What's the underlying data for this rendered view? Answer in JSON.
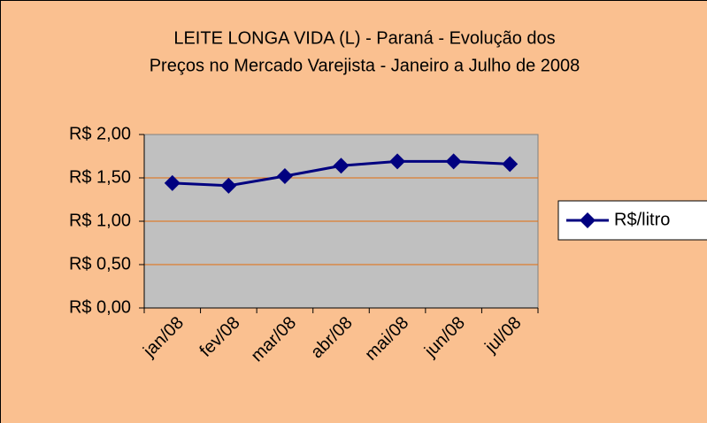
{
  "chart_data": {
    "type": "line",
    "title": [
      "LEITE LONGA VIDA (L) - Paraná - Evolução dos",
      "Preços no Mercado Varejista - Janeiro a Julho de 2008"
    ],
    "categories": [
      "jan/08",
      "fev/08",
      "mar/08",
      "abr/08",
      "mai/08",
      "jun/08",
      "jul/08"
    ],
    "series": [
      {
        "name": "R$/litro",
        "color": "#000080",
        "values": [
          1.44,
          1.41,
          1.52,
          1.64,
          1.69,
          1.69,
          1.66
        ]
      }
    ],
    "ylim": [
      0,
      2
    ],
    "yticks": [
      {
        "value": 0,
        "label": "R$ 0,00"
      },
      {
        "value": 0.5,
        "label": "R$ 0,50"
      },
      {
        "value": 1,
        "label": "R$ 1,00"
      },
      {
        "value": 1.5,
        "label": "R$ 1,50"
      },
      {
        "value": 2,
        "label": "R$ 2,00"
      }
    ],
    "grid": true,
    "legend": "right"
  }
}
